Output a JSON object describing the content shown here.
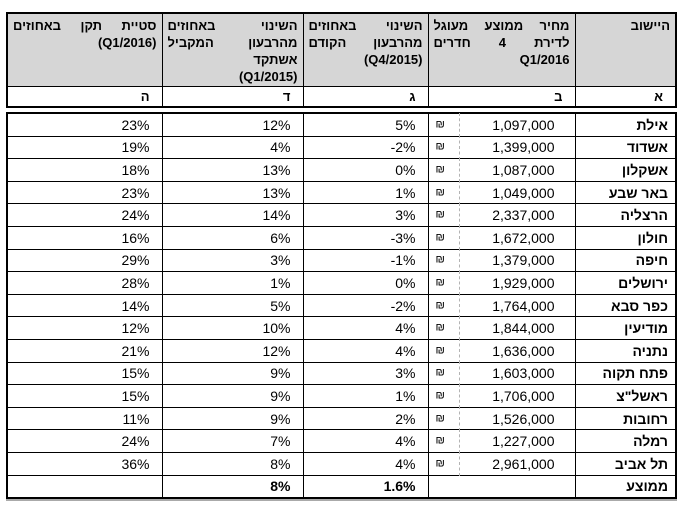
{
  "table": {
    "columns": [
      {
        "key": "city",
        "letter": "א",
        "header_lines": [
          "היישוב"
        ]
      },
      {
        "key": "price",
        "letter": "ב",
        "header_lines": [
          "מחיר ממוצע מעוגל",
          "לדירת 4 חדרים",
          "Q1/2016"
        ]
      },
      {
        "key": "qoq",
        "letter": "ג",
        "header_lines": [
          "השינוי באחוזים",
          "מהרבעון הקודם",
          "(Q4/2015)"
        ]
      },
      {
        "key": "yoy",
        "letter": "ד",
        "header_lines": [
          "השינוי באחוזים",
          "מהרבעון המקביל",
          "אשתקד",
          "(Q1/2015)"
        ]
      },
      {
        "key": "std",
        "letter": "ה",
        "header_lines": [
          "סטיית תקן באחוזים",
          "(Q1/2016)"
        ]
      }
    ],
    "currency_symbol": "₪",
    "rows": [
      {
        "city": "אילת",
        "price": "1,097,000",
        "qoq": "5%",
        "yoy": "12%",
        "std": "23%"
      },
      {
        "city": "אשדוד",
        "price": "1,399,000",
        "qoq": "-2%",
        "yoy": "4%",
        "std": "19%"
      },
      {
        "city": "אשקלון",
        "price": "1,087,000",
        "qoq": "0%",
        "yoy": "13%",
        "std": "18%"
      },
      {
        "city": "באר שבע",
        "price": "1,049,000",
        "qoq": "1%",
        "yoy": "13%",
        "std": "23%"
      },
      {
        "city": "הרצליה",
        "price": "2,337,000",
        "qoq": "3%",
        "yoy": "14%",
        "std": "24%"
      },
      {
        "city": "חולון",
        "price": "1,672,000",
        "qoq": "-3%",
        "yoy": "6%",
        "std": "16%"
      },
      {
        "city": "חיפה",
        "price": "1,379,000",
        "qoq": "-1%",
        "yoy": "3%",
        "std": "29%"
      },
      {
        "city": "ירושלים",
        "price": "1,929,000",
        "qoq": "0%",
        "yoy": "1%",
        "std": "28%"
      },
      {
        "city": "כפר סבא",
        "price": "1,764,000",
        "qoq": "-2%",
        "yoy": "5%",
        "std": "14%"
      },
      {
        "city": "מודיעין",
        "price": "1,844,000",
        "qoq": "4%",
        "yoy": "10%",
        "std": "12%"
      },
      {
        "city": "נתניה",
        "price": "1,636,000",
        "qoq": "4%",
        "yoy": "12%",
        "std": "21%"
      },
      {
        "city": "פתח תקוה",
        "price": "1,603,000",
        "qoq": "3%",
        "yoy": "9%",
        "std": "15%"
      },
      {
        "city": "ראשל\"צ",
        "price": "1,706,000",
        "qoq": "1%",
        "yoy": "9%",
        "std": "15%"
      },
      {
        "city": "רחובות",
        "price": "1,526,000",
        "qoq": "2%",
        "yoy": "9%",
        "std": "11%"
      },
      {
        "city": "רמלה",
        "price": "1,227,000",
        "qoq": "4%",
        "yoy": "7%",
        "std": "24%"
      },
      {
        "city": "תל אביב",
        "price": "2,961,000",
        "qoq": "4%",
        "yoy": "8%",
        "std": "36%"
      }
    ],
    "summary_row": {
      "city": "ממוצע",
      "price": "",
      "qoq": "1.6%",
      "yoy": "8%",
      "std": ""
    }
  },
  "colors": {
    "header_bg": "#d6d6d6",
    "border": "#000000",
    "dashed_divider": "#b3b3b3",
    "shadow": "#aaaaaa"
  }
}
